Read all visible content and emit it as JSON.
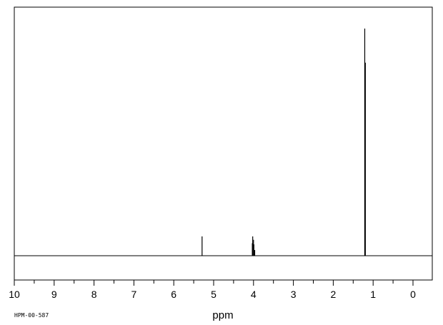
{
  "chart_data": {
    "type": "line",
    "title": "",
    "xlabel": "ppm",
    "ylabel": "",
    "xlim": [
      10,
      -0.55
    ],
    "x_reversed": true,
    "ylim": [
      0,
      100
    ],
    "major_ticks": [
      10,
      9,
      8,
      7,
      6,
      5,
      4,
      3,
      2,
      1,
      0
    ],
    "tick_labels": [
      "10",
      "9",
      "8",
      "7",
      "6",
      "5",
      "4",
      "3",
      "2",
      "1",
      "0"
    ],
    "grid": false,
    "legend": "none",
    "peaks": [
      {
        "ppm": 5.29,
        "intensity": 8.5
      },
      {
        "ppm": 4.03,
        "intensity": 5.5
      },
      {
        "ppm": 4.02,
        "intensity": 8.5
      },
      {
        "ppm": 4.0,
        "intensity": 7.0
      },
      {
        "ppm": 3.99,
        "intensity": 5.0
      },
      {
        "ppm": 3.97,
        "intensity": 2.5
      },
      {
        "ppm": 1.21,
        "intensity": 100
      },
      {
        "ppm": 1.195,
        "intensity": 85
      }
    ],
    "code_label": "HPM-00-587"
  }
}
